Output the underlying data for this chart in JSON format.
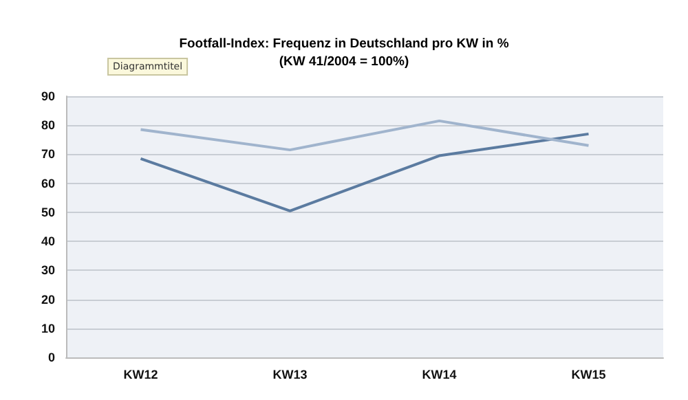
{
  "chart_data": {
    "type": "line",
    "title": "Footfall-Index: Frequenz in Deutschland pro KW in %",
    "subtitle": "(KW 41/2004 = 100%)",
    "annotations": [
      "Diagrammtitel"
    ],
    "categories": [
      "KW12",
      "KW13",
      "KW14",
      "KW15"
    ],
    "series": [
      {
        "color": "#5b7ba0",
        "values": [
          68.5,
          50.5,
          69.5,
          77
        ]
      },
      {
        "color": "#a0b4cd",
        "values": [
          78.5,
          71.5,
          81.5,
          73
        ]
      }
    ],
    "ylim": [
      0,
      90
    ],
    "yticks": [
      0,
      10,
      20,
      30,
      40,
      50,
      60,
      70,
      80,
      90
    ],
    "grid": "y",
    "marker": "none",
    "line_style": "solid"
  }
}
